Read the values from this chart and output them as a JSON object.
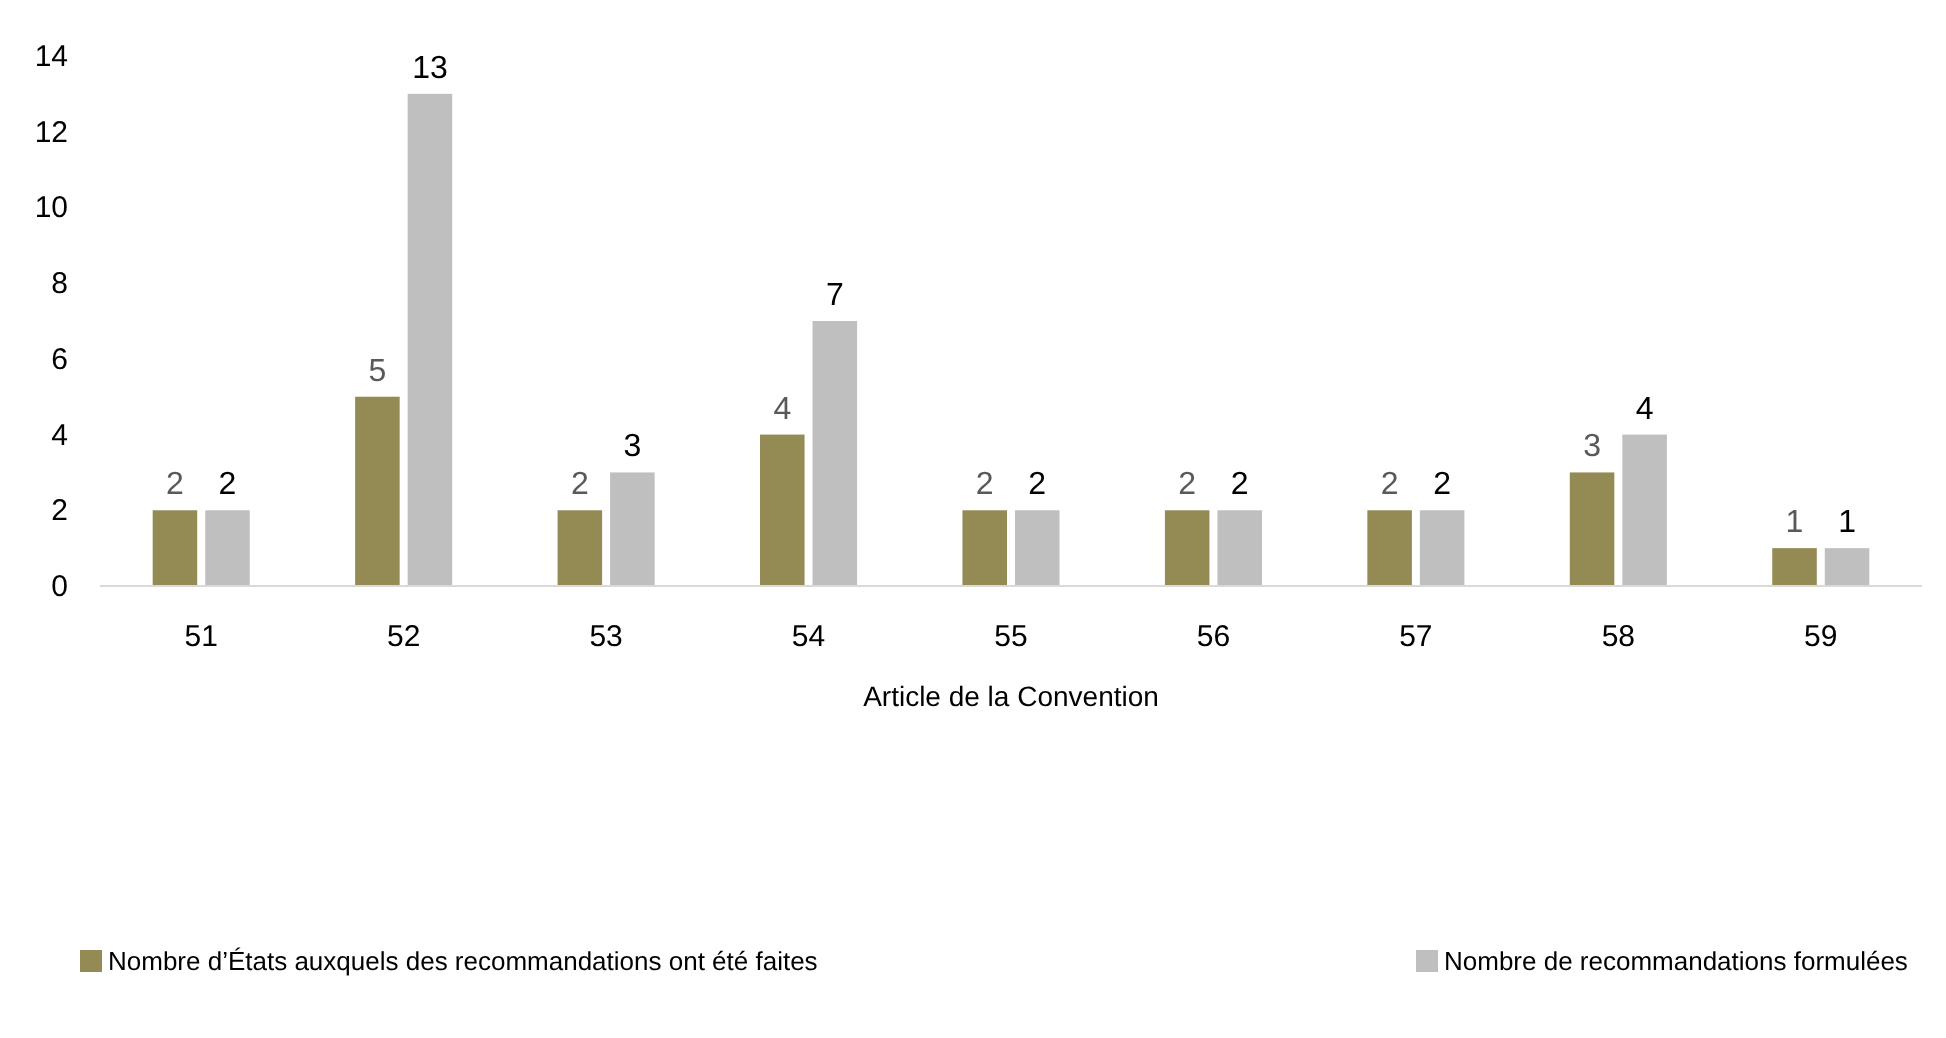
{
  "chart_data": {
    "type": "bar",
    "xlabel": "Article de la Convention",
    "categories": [
      "51",
      "52",
      "53",
      "54",
      "55",
      "56",
      "57",
      "58",
      "59"
    ],
    "series": [
      {
        "name": "Nombre d’États auxquels des recommandations ont été faites",
        "color": "#948a54",
        "values": [
          2,
          5,
          2,
          4,
          2,
          2,
          2,
          3,
          1
        ]
      },
      {
        "name": "Nombre de recommandations formulées",
        "color": "#bfbfbf",
        "values": [
          2,
          13,
          3,
          7,
          2,
          2,
          2,
          4,
          1
        ]
      }
    ],
    "ylim": [
      0,
      14
    ],
    "yticks": [
      0,
      2,
      4,
      6,
      8,
      10,
      12,
      14
    ],
    "grid": false,
    "legend": "bottom",
    "data_labels": true
  }
}
